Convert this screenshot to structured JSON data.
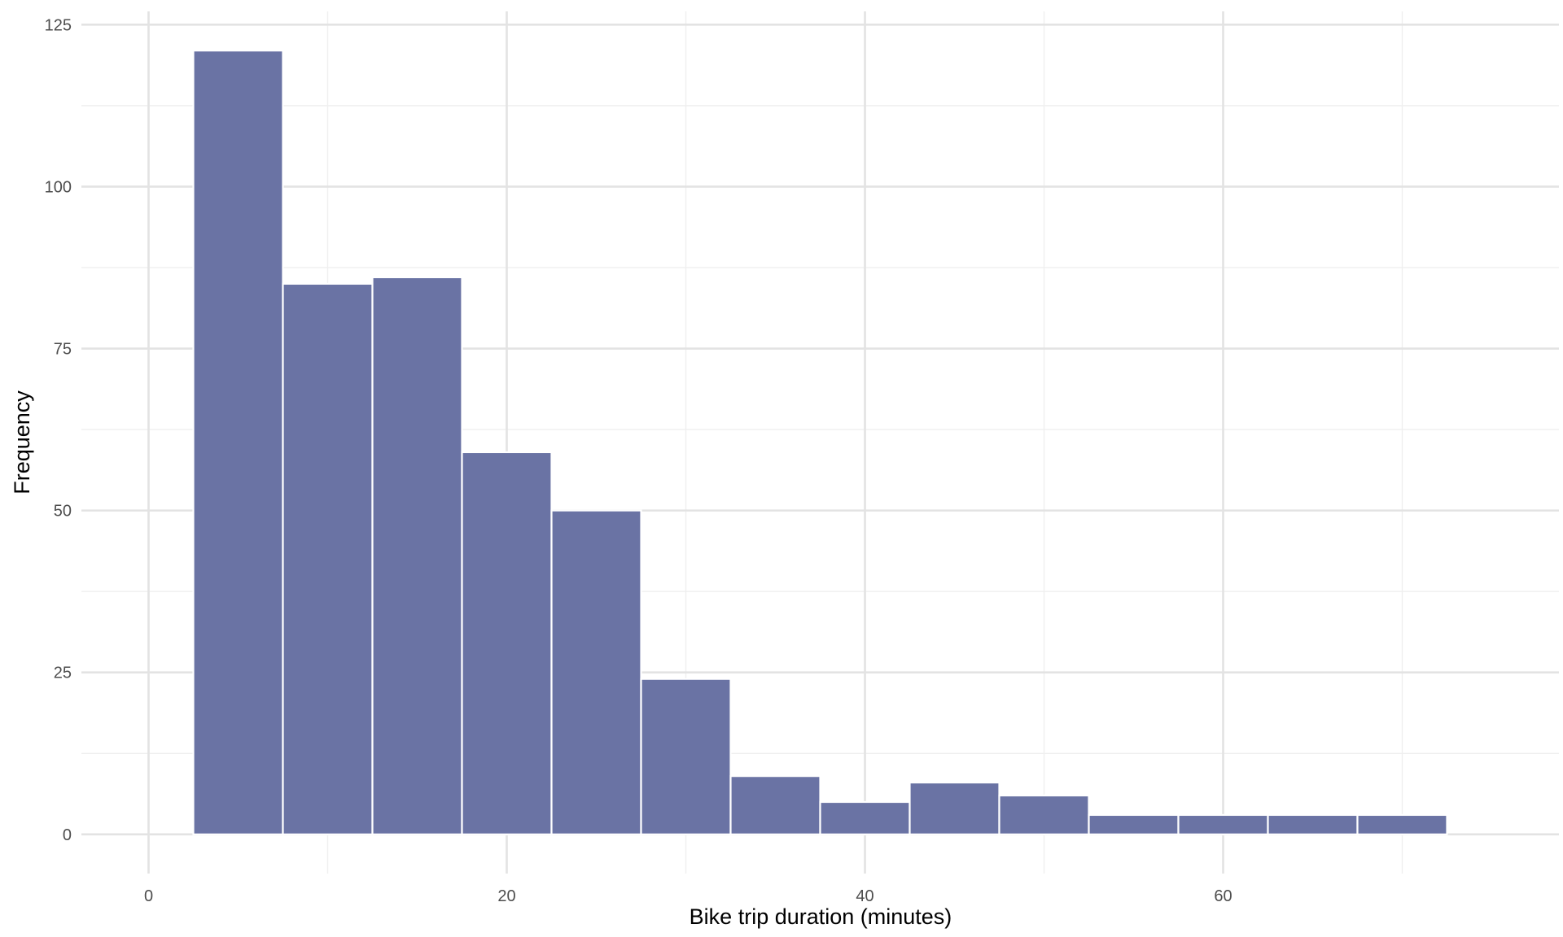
{
  "chart_data": {
    "type": "bar",
    "subtype": "histogram",
    "title": "",
    "xlabel": "Bike trip duration (minutes)",
    "ylabel": "Frequency",
    "bin_width": 5,
    "bins": [
      {
        "x_start": 2.5,
        "x_end": 7.5,
        "count": 121
      },
      {
        "x_start": 7.5,
        "x_end": 12.5,
        "count": 85
      },
      {
        "x_start": 12.5,
        "x_end": 17.5,
        "count": 86
      },
      {
        "x_start": 17.5,
        "x_end": 22.5,
        "count": 59
      },
      {
        "x_start": 22.5,
        "x_end": 27.5,
        "count": 50
      },
      {
        "x_start": 27.5,
        "x_end": 32.5,
        "count": 24
      },
      {
        "x_start": 32.5,
        "x_end": 37.5,
        "count": 9
      },
      {
        "x_start": 37.5,
        "x_end": 42.5,
        "count": 5
      },
      {
        "x_start": 42.5,
        "x_end": 47.5,
        "count": 8
      },
      {
        "x_start": 47.5,
        "x_end": 52.5,
        "count": 6
      },
      {
        "x_start": 52.5,
        "x_end": 57.5,
        "count": 3
      },
      {
        "x_start": 57.5,
        "x_end": 62.5,
        "count": 3
      },
      {
        "x_start": 62.5,
        "x_end": 67.5,
        "count": 3
      },
      {
        "x_start": 67.5,
        "x_end": 72.5,
        "count": 3
      }
    ],
    "xlim": [
      -3.75,
      78.75
    ],
    "ylim": [
      -6.05,
      127.05
    ],
    "x_ticks": [
      0,
      20,
      40,
      60
    ],
    "x_tick_labels": [
      "0",
      "20",
      "40",
      "60"
    ],
    "x_minor_ticks": [
      10,
      30,
      50,
      70
    ],
    "y_ticks": [
      0,
      25,
      50,
      75,
      100,
      125
    ],
    "y_tick_labels": [
      "0",
      "25",
      "50",
      "75",
      "100",
      "125"
    ],
    "y_minor_ticks": [
      12.5,
      37.5,
      62.5,
      87.5,
      112.5
    ],
    "grid": true,
    "legend": "none",
    "colors": {
      "bar_fill": "#6a73a4",
      "bar_outline": "#ffffff",
      "grid_major": "#e3e3e3",
      "grid_minor": "#efefef",
      "tick_text": "#4d4d4d",
      "axis_title_text": "#000000",
      "background": "#ffffff"
    }
  }
}
